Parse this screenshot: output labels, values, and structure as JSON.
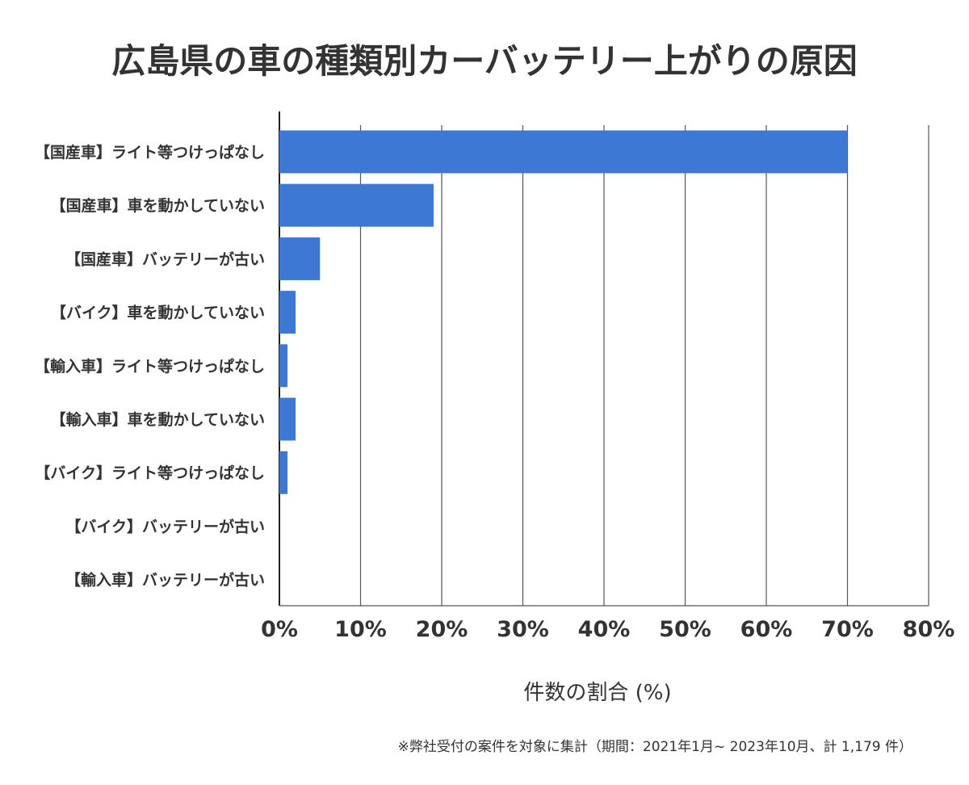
{
  "chart_data": {
    "type": "bar",
    "orientation": "horizontal",
    "title": "広島県の車の種類別カーバッテリー上がりの原因",
    "categories": [
      "【国産車】ライト等つけっぱなし",
      "【国産車】車を動かしていない",
      "【国産車】バッテリーが古い",
      "【バイク】車を動かしていない",
      "【輸入車】ライト等つけっぱなし",
      "【輸入車】車を動かしていない",
      "【バイク】ライト等つけっぱなし",
      "【バイク】バッテリーが古い",
      "【輸入車】バッテリーが古い"
    ],
    "values": [
      70.0,
      19.0,
      5.0,
      2.0,
      1.0,
      2.0,
      1.0,
      0,
      0
    ],
    "xlabel": "件数の割合 (%)",
    "ylabel": "",
    "xlim": [
      0,
      80
    ],
    "xticks": [
      "0%",
      "10%",
      "20%",
      "30%",
      "40%",
      "50%",
      "60%",
      "70%",
      "80%"
    ],
    "grid": "vertical",
    "bar_color": "#3c78d4",
    "note": "※弊社受付の案件を対象に集計（期間：2021年1月~ 2023年10月、計 1,179 件）"
  }
}
